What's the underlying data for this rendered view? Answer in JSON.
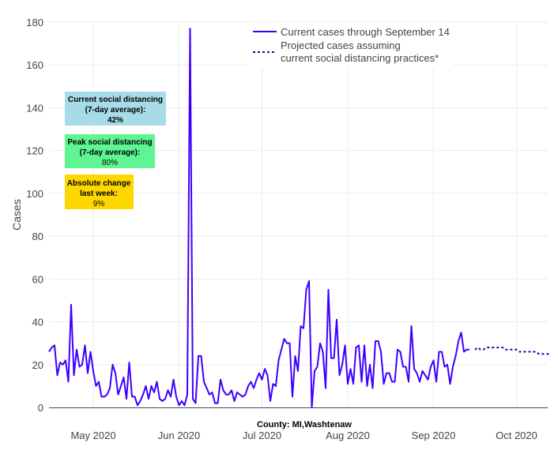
{
  "chart_data": {
    "type": "line",
    "ylabel": "Cases",
    "xlabel": "County: MI,Washtenaw",
    "ylim": [
      0,
      180
    ],
    "yticks": [
      0,
      20,
      40,
      60,
      80,
      100,
      120,
      140,
      160,
      180
    ],
    "xticks": [
      {
        "date": "2020-05-01",
        "label": "May 2020"
      },
      {
        "date": "2020-06-01",
        "label": "Jun 2020"
      },
      {
        "date": "2020-07-01",
        "label": "Jul 2020"
      },
      {
        "date": "2020-08-01",
        "label": "Aug 2020"
      },
      {
        "date": "2020-09-01",
        "label": "Sep 2020"
      },
      {
        "date": "2020-10-01",
        "label": "Oct 2020"
      }
    ],
    "grid": true,
    "legend_position": "top-right",
    "series": [
      {
        "name": "Current cases through September 14",
        "style": "solid",
        "color": "#3d00ff",
        "start_date": "2020-04-15",
        "values": [
          26,
          28,
          29,
          15,
          21,
          20,
          22,
          12,
          48,
          15,
          27,
          19,
          20,
          29,
          16,
          26,
          17,
          10,
          12,
          5,
          5,
          6,
          9,
          20,
          16,
          6,
          10,
          14,
          4,
          21,
          5,
          5,
          1,
          3,
          6,
          10,
          4,
          10,
          7,
          12,
          4,
          3,
          4,
          8,
          5,
          13,
          5,
          1,
          3,
          1,
          6,
          177,
          4,
          2,
          24,
          24,
          12,
          9,
          6,
          7,
          2,
          2,
          13,
          8,
          6,
          6,
          8,
          3,
          7,
          6,
          5,
          6,
          10,
          12,
          9,
          13,
          16,
          13,
          18,
          15,
          3,
          11,
          10,
          22,
          27,
          32,
          30,
          30,
          5,
          24,
          17,
          38,
          37,
          55,
          59,
          0,
          17,
          19,
          30,
          26,
          9,
          55,
          23,
          23,
          41,
          15,
          20,
          29,
          11,
          18,
          11,
          28,
          29,
          12,
          29,
          10,
          20,
          9,
          31,
          31,
          26,
          11,
          16,
          16,
          12,
          12,
          27,
          26,
          19,
          19,
          12,
          38,
          18,
          16,
          12,
          17,
          15,
          13,
          19,
          22,
          12,
          26,
          26,
          19,
          20,
          11,
          19,
          24,
          31,
          35,
          26,
          27,
          27
        ]
      },
      {
        "name_line1": "Projected cases assuming",
        "name_line2": "current social distancing practices*",
        "style": "dotted",
        "color": "#2a00a8",
        "start_date": "2020-09-16",
        "values": [
          27,
          28,
          27,
          27,
          28,
          28,
          28,
          28,
          28,
          28,
          28,
          27,
          27,
          27,
          27,
          27,
          26,
          26,
          26,
          26,
          26,
          26,
          26,
          25,
          25,
          25,
          25,
          25
        ]
      }
    ],
    "annotations": [
      {
        "line1": "Current social distancing",
        "line2": "(7-day average):",
        "value": "42%",
        "color": "#a8dbe8"
      },
      {
        "line1": "Peak social distancing",
        "line2": "(7-day average):",
        "value": "80%",
        "color": "#5ef592"
      },
      {
        "line1": "Absolute change",
        "line2": "last week:",
        "value": "9%",
        "color": "#ffd700"
      }
    ]
  }
}
